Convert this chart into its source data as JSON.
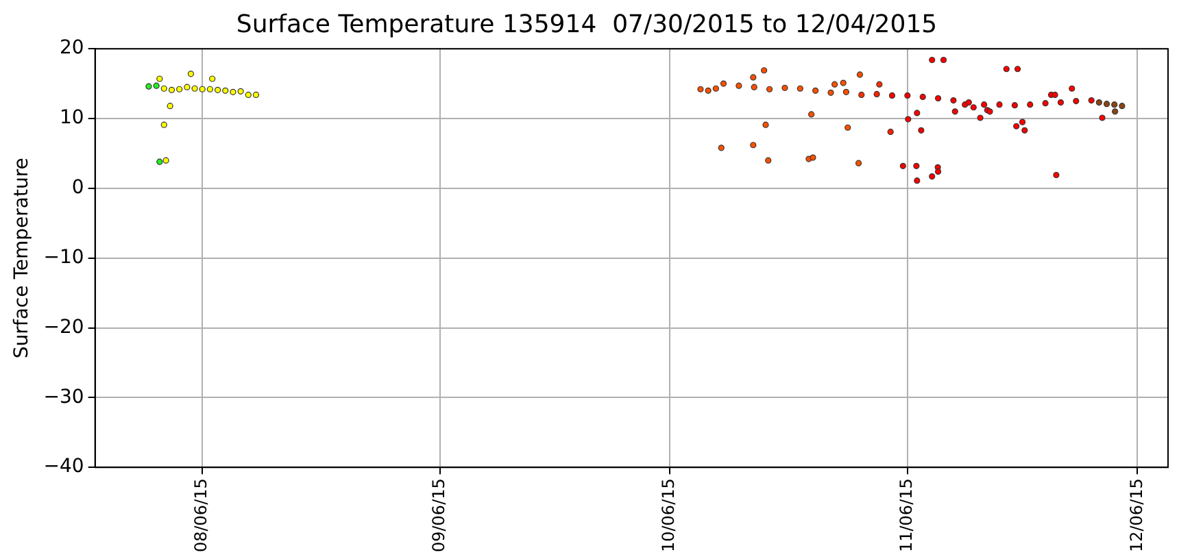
{
  "chart_data": {
    "type": "scatter",
    "title": "Surface Temperature 135914  07/30/2015 to 12/04/2015",
    "ylabel": "Surface Temperature",
    "xlim": [
      "2015-07-23",
      "2015-12-10"
    ],
    "xticks": [
      {
        "value": "2015-08-06",
        "label": "08/06/15"
      },
      {
        "value": "2015-09-06",
        "label": "09/06/15"
      },
      {
        "value": "2015-10-06",
        "label": "10/06/15"
      },
      {
        "value": "2015-11-06",
        "label": "11/06/15"
      },
      {
        "value": "2015-12-06",
        "label": "12/06/15"
      }
    ],
    "ylim": [
      -40,
      20
    ],
    "yticks": [
      -40,
      -30,
      -20,
      -10,
      0,
      10,
      20
    ],
    "grid": true,
    "legend": false,
    "marker": "circle",
    "series": [
      {
        "x": [
          "2015-07-30",
          "2015-07-31",
          "2015-07-31T10:00",
          "2015-07-31T10:00",
          "2015-08-01",
          "2015-08-01T06:00",
          "2015-08-01",
          "2015-08-01T19:00",
          "2015-08-02",
          "2015-08-03",
          "2015-08-04",
          "2015-08-04T12:00",
          "2015-08-05",
          "2015-08-06",
          "2015-08-07",
          "2015-08-07T07:00",
          "2015-08-08",
          "2015-08-09",
          "2015-08-10",
          "2015-08-11",
          "2015-08-12",
          "2015-08-13",
          "2015-10-10",
          "2015-10-11",
          "2015-10-12",
          "2015-10-12T17:00",
          "2015-10-13",
          "2015-10-15",
          "2015-10-16T21:00",
          "2015-10-16T21:00",
          "2015-10-17",
          "2015-10-18T07:00",
          "2015-10-18T12:00",
          "2015-10-18T20:00",
          "2015-10-19",
          "2015-10-21",
          "2015-10-23",
          "2015-10-24T03:00",
          "2015-10-24T11:00",
          "2015-10-24T16:00",
          "2015-10-25",
          "2015-10-27",
          "2015-10-27T12:00",
          "2015-10-28T15:00",
          "2015-10-29",
          "2015-10-29T05:00",
          "2015-10-30T15:00",
          "2015-10-30T19:00",
          "2015-10-31",
          "2015-11-02",
          "2015-11-02T08:00",
          "2015-11-03T19:00",
          "2015-11-04",
          "2015-11-05T10:00",
          "2015-11-06",
          "2015-11-06T02:00",
          "2015-11-07T06:00",
          "2015-11-07T06:00",
          "2015-11-07T04:00",
          "2015-11-07T19:00",
          "2015-11-08",
          "2015-11-09T05:00",
          "2015-11-09T05:00",
          "2015-11-09T23:00",
          "2015-11-10",
          "2015-11-10",
          "2015-11-10T17:00",
          "2015-11-12",
          "2015-11-12T05:00",
          "2015-11-13T12:00",
          "2015-11-14",
          "2015-11-14T15:00",
          "2015-11-15T12:00",
          "2015-11-16",
          "2015-11-16T10:00",
          "2015-11-16T18:00",
          "2015-11-18",
          "2015-11-18T22:00",
          "2015-11-20",
          "2015-11-20T05:00",
          "2015-11-20T09:00",
          "2015-11-21",
          "2015-11-21T07:00",
          "2015-11-22",
          "2015-11-24",
          "2015-11-24T18:00",
          "2015-11-25T06:00",
          "2015-11-25T10:00",
          "2015-11-26",
          "2015-11-27T11:00",
          "2015-11-28",
          "2015-11-30",
          "2015-12-01",
          "2015-12-01T10:00",
          "2015-12-02",
          "2015-12-03",
          "2015-12-03T02:00",
          "2015-12-04"
        ],
        "values": [
          14.6,
          14.7,
          15.7,
          3.8,
          14.3,
          4.0,
          9.1,
          11.8,
          14.1,
          14.2,
          14.5,
          16.4,
          14.3,
          14.2,
          14.2,
          15.7,
          14.1,
          14.0,
          13.8,
          13.9,
          13.4,
          13.4,
          14.2,
          14.0,
          14.3,
          5.8,
          15.0,
          14.7,
          15.9,
          6.2,
          14.5,
          16.9,
          9.1,
          4.0,
          14.2,
          14.4,
          14.3,
          4.2,
          10.6,
          4.4,
          14.0,
          13.7,
          14.9,
          15.1,
          13.8,
          8.7,
          3.6,
          16.3,
          13.4,
          13.5,
          14.9,
          8.1,
          13.3,
          3.2,
          13.3,
          9.9,
          10.8,
          1.1,
          3.2,
          8.3,
          13.1,
          18.4,
          1.7,
          3.0,
          2.4,
          12.9,
          18.4,
          12.6,
          11.0,
          12.0,
          12.3,
          11.6,
          10.1,
          12.0,
          11.2,
          11.0,
          12.0,
          17.1,
          11.9,
          8.9,
          17.1,
          9.5,
          8.3,
          12.0,
          12.2,
          13.4,
          13.4,
          1.9,
          12.3,
          14.3,
          12.5,
          12.6,
          12.3,
          10.1,
          12.1,
          12.0,
          11.0,
          11.8
        ],
        "colors": [
          "#22ee22",
          "#22ee22",
          "#ffff00",
          "#22ee22",
          "#ffff00",
          "#ffff00",
          "#ffff00",
          "#ffff00",
          "#ffff00",
          "#ffff00",
          "#ffff00",
          "#ffff00",
          "#ffff00",
          "#ffff00",
          "#ffff00",
          "#ffff00",
          "#ffff00",
          "#ffff00",
          "#ffff00",
          "#ffff00",
          "#ffff00",
          "#ffff00",
          "#ff5000",
          "#ff5000",
          "#ff5000",
          "#ff5000",
          "#ff5000",
          "#ff5000",
          "#ff5000",
          "#ff5000",
          "#ff5000",
          "#ff5000",
          "#ff5000",
          "#ff5000",
          "#ff5000",
          "#ff5000",
          "#ff5000",
          "#ff5000",
          "#ff5000",
          "#ff5000",
          "#ff5000",
          "#ff5000",
          "#ff5000",
          "#ff5000",
          "#ff5000",
          "#ff5000",
          "#ff5000",
          "#ff5000",
          "#ff3000",
          "#ff2000",
          "#ff3000",
          "#ff2000",
          "#ff0000",
          "#ff0000",
          "#ff0000",
          "#ff0000",
          "#ff0000",
          "#ff0000",
          "#ff0000",
          "#ff0000",
          "#ff0000",
          "#ff0000",
          "#ff0000",
          "#ff0000",
          "#ff0000",
          "#ff0000",
          "#ff0000",
          "#ff0000",
          "#ff0000",
          "#ff0000",
          "#ff0000",
          "#ff0000",
          "#ff0000",
          "#ff0000",
          "#ff0000",
          "#ff0000",
          "#ff0000",
          "#ff0000",
          "#ff0000",
          "#ff0000",
          "#ff0000",
          "#ff0000",
          "#ff0000",
          "#ff0000",
          "#ff0000",
          "#ff0000",
          "#ff0000",
          "#ff0000",
          "#ff0000",
          "#ff0000",
          "#ff0000",
          "#ff0000",
          "#8b4513",
          "#ff0000",
          "#8b4513",
          "#8b4513",
          "#8b4513",
          "#8b4513"
        ]
      }
    ]
  }
}
